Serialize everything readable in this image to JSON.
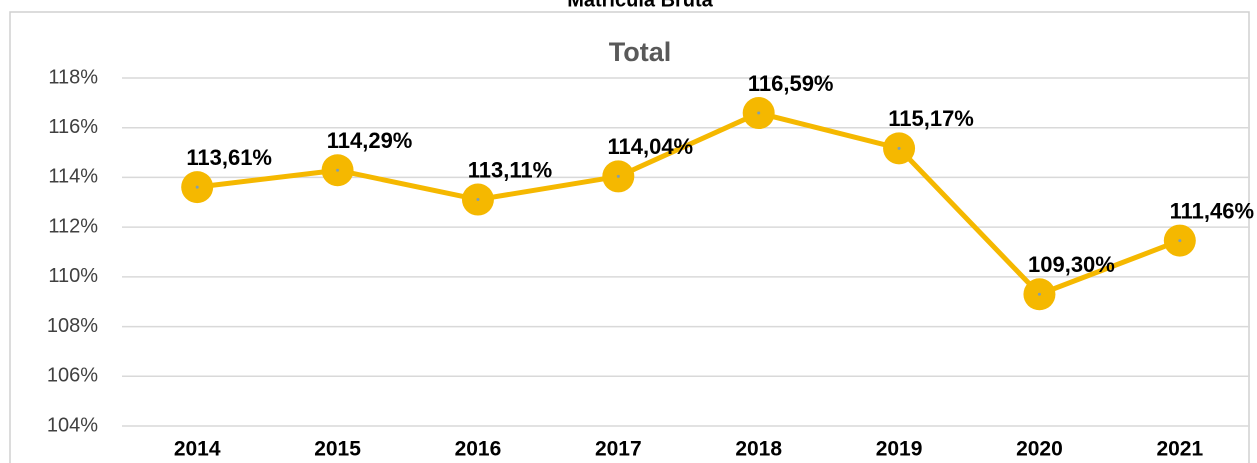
{
  "header": "Matrícula Bruta",
  "chart_data": {
    "type": "line",
    "title": "Total",
    "categories": [
      "2014",
      "2015",
      "2016",
      "2017",
      "2018",
      "2019",
      "2020",
      "2021"
    ],
    "series": [
      {
        "name": "Total",
        "color": "#f5b800",
        "values": [
          113.61,
          114.29,
          113.11,
          114.04,
          116.59,
          115.17,
          109.3,
          111.46
        ],
        "value_labels": [
          "113,61%",
          "114,29%",
          "113,11%",
          "114,04%",
          "116,59%",
          "115,17%",
          "109,30%",
          "111,46%"
        ]
      }
    ],
    "ylim": [
      104,
      118
    ],
    "yticks": [
      {
        "value": 104,
        "label": "104%"
      },
      {
        "value": 106,
        "label": "106%"
      },
      {
        "value": 108,
        "label": "108%"
      },
      {
        "value": 110,
        "label": "110%"
      },
      {
        "value": 112,
        "label": "112%"
      },
      {
        "value": 114,
        "label": "114%"
      },
      {
        "value": 116,
        "label": "116%"
      },
      {
        "value": 118,
        "label": "118%"
      }
    ],
    "grid": true
  }
}
